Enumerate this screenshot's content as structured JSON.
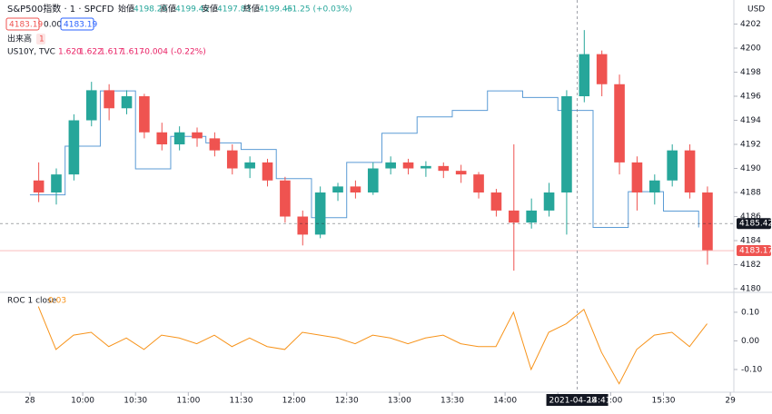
{
  "header": {
    "symbol": "S&P500指数 · 1 · SPCFD",
    "open_label": "始値",
    "open": "4198.20",
    "high_label": "高値",
    "high": "4199.45",
    "low_label": "安値",
    "low": "4197.83",
    "close_label": "終値",
    "close": "4199.45",
    "change": "+1.25 (+0.03%)",
    "badges": [
      "4183.19",
      "0.00",
      "4183.19"
    ],
    "volume_label": "出来高",
    "badge_icon": "1",
    "overlay_title": "US10Y, TVC",
    "overlay_values": [
      "1.620",
      "1.622",
      "1.617",
      "1.617"
    ],
    "overlay_change": "-0.004 (-0.22%)",
    "currency": "USD"
  },
  "chart_data": [
    {
      "type": "candlestick",
      "x": [
        570,
        580,
        590,
        600,
        610,
        620,
        630,
        640,
        650,
        660,
        670,
        680,
        690,
        700,
        710,
        720,
        730,
        740,
        750,
        760,
        770,
        780,
        790,
        800,
        810,
        820,
        830,
        840,
        850,
        860,
        870,
        880,
        890,
        900,
        910,
        920,
        930,
        940,
        950
      ],
      "open": [
        4189.0,
        4188.0,
        4189.5,
        4194.0,
        4196.5,
        4195.0,
        4196.0,
        4193.0,
        4192.0,
        4193.0,
        4192.5,
        4191.5,
        4190.0,
        4190.5,
        4189.0,
        4186.0,
        4184.5,
        4188.0,
        4188.5,
        4188.0,
        4190.0,
        4190.5,
        4190.0,
        4190.2,
        4189.8,
        4189.5,
        4188.0,
        4186.5,
        4185.5,
        4186.5,
        4188.0,
        4196.0,
        4199.5,
        4197.0,
        4190.5,
        4188.0,
        4189.0,
        4191.5,
        4188.0
      ],
      "high": [
        4190.5,
        4190.0,
        4194.5,
        4197.2,
        4197.0,
        4196.5,
        4196.2,
        4193.8,
        4193.5,
        4193.4,
        4193.0,
        4192.0,
        4191.0,
        4190.8,
        4189.3,
        4186.5,
        4188.5,
        4188.8,
        4189.0,
        4190.5,
        4191.0,
        4190.8,
        4190.6,
        4190.5,
        4190.3,
        4189.7,
        4188.3,
        4192.0,
        4187.5,
        4188.8,
        4196.5,
        4201.5,
        4199.8,
        4197.8,
        4191.0,
        4189.5,
        4192.0,
        4192.0,
        4188.5
      ],
      "low": [
        4187.2,
        4187.0,
        4189.0,
        4193.5,
        4194.0,
        4194.5,
        4192.5,
        4191.5,
        4191.5,
        4191.8,
        4191.0,
        4189.5,
        4189.2,
        4188.5,
        4185.5,
        4183.6,
        4184.2,
        4187.3,
        4187.5,
        4187.8,
        4189.5,
        4189.5,
        4189.3,
        4189.2,
        4188.8,
        4187.5,
        4186.0,
        4181.5,
        4185.0,
        4186.0,
        4184.5,
        4195.5,
        4196.0,
        4189.5,
        4186.5,
        4187.0,
        4188.5,
        4187.5,
        4182.0
      ],
      "close": [
        4188.0,
        4189.5,
        4194.0,
        4196.5,
        4195.0,
        4196.0,
        4193.0,
        4192.0,
        4193.0,
        4192.5,
        4191.5,
        4190.0,
        4190.5,
        4189.0,
        4186.0,
        4184.5,
        4188.0,
        4188.5,
        4188.0,
        4190.0,
        4190.5,
        4190.0,
        4190.2,
        4189.8,
        4189.5,
        4188.0,
        4186.5,
        4185.5,
        4186.5,
        4188.0,
        4196.0,
        4199.5,
        4197.0,
        4190.5,
        4188.0,
        4189.0,
        4191.5,
        4188.0,
        4183.2
      ],
      "up_color": "#26a69a",
      "down_color": "#ef5350",
      "xlim": [
        553,
        970
      ],
      "xticks": [
        {
          "value": 570,
          "label": "28"
        },
        {
          "value": 600,
          "label": "10:00"
        },
        {
          "value": 630,
          "label": "10:30"
        },
        {
          "value": 660,
          "label": "11:00"
        },
        {
          "value": 690,
          "label": "11:30"
        },
        {
          "value": 720,
          "label": "12:00"
        },
        {
          "value": 750,
          "label": "12:30"
        },
        {
          "value": 780,
          "label": "13:00"
        },
        {
          "value": 810,
          "label": "13:30"
        },
        {
          "value": 840,
          "label": "14:00"
        },
        {
          "value": 870,
          "label": "14:30"
        },
        {
          "value": 900,
          "label": "15:00"
        },
        {
          "value": 930,
          "label": "15:30"
        },
        {
          "value": 968,
          "label": "29"
        }
      ],
      "ylim": [
        4179.7,
        4204.0
      ],
      "yticks": [
        4180,
        4182,
        4184,
        4186,
        4188,
        4190,
        4192,
        4194,
        4196,
        4198,
        4200,
        4202
      ],
      "overlay": {
        "name": "US10Y, TVC",
        "color": "#5b9bd5",
        "x": [
          570,
          590,
          610,
          630,
          650,
          670,
          690,
          710,
          730,
          750,
          770,
          790,
          810,
          830,
          850,
          870,
          890,
          910,
          930,
          950
        ],
        "values": [
          1.6,
          1.615,
          1.632,
          1.608,
          1.618,
          1.616,
          1.614,
          1.605,
          1.593,
          1.61,
          1.619,
          1.624,
          1.626,
          1.632,
          1.63,
          1.626,
          1.59,
          1.601,
          1.595,
          1.59
        ],
        "ylim": [
          1.57,
          1.66
        ]
      },
      "price_lines": [
        {
          "value": 4185.42,
          "label": "4185.42",
          "color": "#131722"
        },
        {
          "value": 4183.17,
          "label": "4183.17",
          "color": "#ef5350"
        }
      ],
      "crosshair": {
        "x": 881,
        "date": "2021-04-28",
        "time": "14:41"
      }
    },
    {
      "type": "line",
      "title": "ROC 1 close",
      "last": "0.03",
      "color": "#f7931a",
      "x": [
        570,
        580,
        590,
        600,
        610,
        620,
        630,
        640,
        650,
        660,
        670,
        680,
        690,
        700,
        710,
        720,
        730,
        740,
        750,
        760,
        770,
        780,
        790,
        800,
        810,
        820,
        830,
        840,
        850,
        860,
        870,
        880,
        890,
        900,
        910,
        920,
        930,
        940,
        950
      ],
      "values": [
        0.12,
        -0.03,
        0.02,
        0.03,
        -0.02,
        0.01,
        -0.03,
        0.02,
        0.01,
        -0.01,
        0.02,
        -0.02,
        0.01,
        -0.02,
        -0.03,
        0.03,
        0.02,
        0.01,
        -0.01,
        0.02,
        0.01,
        -0.01,
        0.01,
        0.02,
        -0.01,
        -0.02,
        -0.02,
        0.1,
        -0.1,
        0.03,
        0.06,
        0.11,
        -0.04,
        -0.15,
        -0.03,
        0.02,
        0.03,
        -0.02,
        0.06
      ],
      "ylim": [
        -0.173,
        0.16
      ],
      "yticks": [
        {
          "value": 0.1,
          "label": "0.10"
        },
        {
          "value": 0,
          "label": "0.00"
        },
        {
          "value": -0.1,
          "label": "-0.10"
        }
      ]
    }
  ]
}
